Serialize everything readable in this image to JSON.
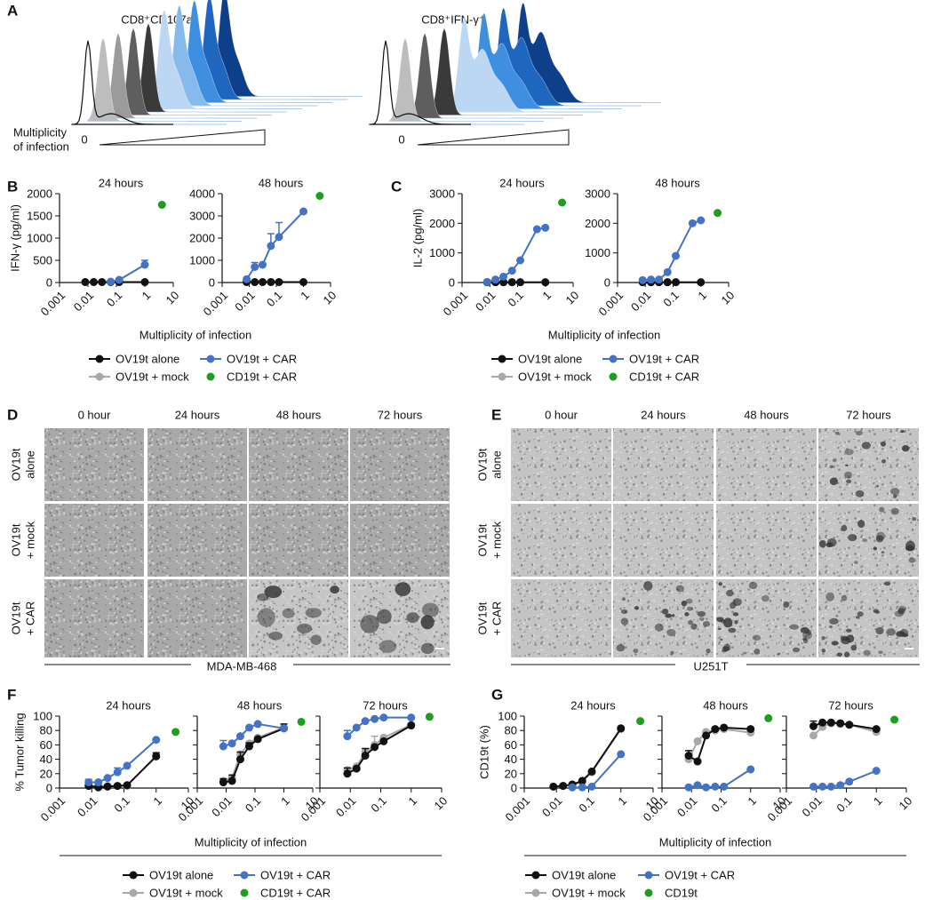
{
  "histograms": {
    "label": "A",
    "titles": [
      "CD8⁺CD107a⁺",
      "CD8⁺IFN-γ⁺"
    ],
    "moi_label": [
      "Multiplicity",
      "of infection"
    ],
    "zero": "0"
  },
  "micrographs": [
    {
      "label": "D",
      "columns": [
        "0 hour",
        "24 hours",
        "48 hours",
        "72 hours"
      ],
      "rows": [
        [
          "OV19t",
          "alone"
        ],
        [
          "OV19t",
          "+ mock"
        ],
        [
          "OV19t",
          "+ CAR"
        ]
      ],
      "cell_line": "MDA-MB-468"
    },
    {
      "label": "E",
      "columns": [
        "0 hour",
        "24 hours",
        "48 hours",
        "72 hours"
      ],
      "rows": [
        [
          "OV19t",
          "alone"
        ],
        [
          "OV19t",
          "+ mock"
        ],
        [
          "OV19t",
          "+ CAR"
        ]
      ],
      "cell_line": "U251T"
    }
  ],
  "chart_data": [
    {
      "type": "line",
      "label": "B",
      "ylabel": "IFN-γ (pg/ml)",
      "xlabel": "Multiplicity of infection",
      "xscale": "log",
      "xlim": [
        0.001,
        10
      ],
      "xticks": [
        0.001,
        0.01,
        0.1,
        1,
        10
      ],
      "series": [
        {
          "name": "OV19t alone",
          "color": "#111111"
        },
        {
          "name": "OV19t + mock",
          "color": "#a8a8a8"
        },
        {
          "name": "OV19t + CAR",
          "color": "#4472c4"
        },
        {
          "name": "CD19t + CAR",
          "color": "#1e9e1e",
          "line": false
        }
      ],
      "panels": [
        {
          "title": "24 hours",
          "ylim": [
            0,
            2000
          ],
          "yticks": [
            0,
            500,
            1000,
            1500,
            2000
          ],
          "data": [
            {
              "x": [
                0.008,
                0.016,
                0.031,
                0.063,
                0.125,
                1
              ],
              "values": [
                10,
                10,
                10,
                10,
                10,
                10
              ]
            },
            {
              "x": [
                0.008,
                0.016,
                0.031,
                0.063,
                0.125,
                1
              ],
              "values": [
                10,
                10,
                10,
                10,
                10,
                10
              ]
            },
            {
              "x": [
                0.063,
                0.125,
                1
              ],
              "values": [
                20,
                60,
                400
              ],
              "errors": [
                null,
                null,
                100
              ]
            },
            {
              "x": [
                4
              ],
              "values": [
                1750
              ]
            }
          ]
        },
        {
          "title": "48 hours",
          "ylim": [
            0,
            4000
          ],
          "yticks": [
            0,
            1000,
            2000,
            3000,
            4000
          ],
          "data": [
            {
              "x": [
                0.008,
                0.016,
                0.031,
                0.063,
                0.125,
                1
              ],
              "values": [
                20,
                20,
                20,
                20,
                20,
                20
              ]
            },
            {
              "x": [
                0.008,
                0.016,
                0.031,
                0.063,
                0.125,
                1
              ],
              "values": [
                20,
                20,
                20,
                20,
                20,
                20
              ]
            },
            {
              "x": [
                0.008,
                0.016,
                0.031,
                0.063,
                0.125,
                1
              ],
              "values": [
                150,
                700,
                800,
                1650,
                2050,
                3200
              ],
              "errors": [
                null,
                200,
                null,
                550,
                650,
                null
              ]
            },
            {
              "x": [
                4
              ],
              "values": [
                3900
              ]
            }
          ]
        }
      ]
    },
    {
      "type": "line",
      "label": "C",
      "ylabel": "IL-2 (pg/ml)",
      "xlabel": "Multiplicity of infection",
      "xscale": "log",
      "xlim": [
        0.001,
        10
      ],
      "xticks": [
        0.001,
        0.01,
        0.1,
        1,
        10
      ],
      "series": [
        {
          "name": "OV19t alone",
          "color": "#111111"
        },
        {
          "name": "OV19t + mock",
          "color": "#a8a8a8"
        },
        {
          "name": "OV19t + CAR",
          "color": "#4472c4"
        },
        {
          "name": "CD19t + CAR",
          "color": "#1e9e1e",
          "line": false
        }
      ],
      "panels": [
        {
          "title": "24 hours",
          "ylim": [
            0,
            3000
          ],
          "yticks": [
            0,
            1000,
            2000,
            3000
          ],
          "data": [
            {
              "x": [
                0.008,
                0.016,
                0.031,
                0.063,
                0.125,
                1
              ],
              "values": [
                10,
                10,
                10,
                10,
                10,
                10
              ]
            },
            {
              "x": [
                0.008,
                0.016,
                0.031,
                0.063,
                0.125,
                1
              ],
              "values": [
                10,
                10,
                10,
                10,
                10,
                10
              ]
            },
            {
              "x": [
                0.008,
                0.016,
                0.031,
                0.063,
                0.125,
                0.5,
                1
              ],
              "values": [
                20,
                100,
                200,
                400,
                750,
                1800,
                1850
              ]
            },
            {
              "x": [
                4
              ],
              "values": [
                2700
              ]
            }
          ]
        },
        {
          "title": "48 hours",
          "ylim": [
            0,
            3000
          ],
          "yticks": [
            0,
            1000,
            2000,
            3000
          ],
          "data": [
            {
              "x": [
                0.008,
                0.016,
                0.031,
                0.063,
                0.125,
                1
              ],
              "values": [
                10,
                10,
                10,
                10,
                10,
                10
              ]
            },
            {
              "x": [
                0.008,
                0.016,
                0.031,
                0.063,
                0.125,
                1
              ],
              "values": [
                10,
                10,
                10,
                10,
                10,
                10
              ]
            },
            {
              "x": [
                0.008,
                0.016,
                0.031,
                0.063,
                0.125,
                0.5,
                1
              ],
              "values": [
                80,
                100,
                100,
                350,
                900,
                2000,
                2100
              ]
            },
            {
              "x": [
                4
              ],
              "values": [
                2350
              ]
            }
          ]
        }
      ]
    },
    {
      "type": "line",
      "label": "F",
      "ylabel": "% Tumor killing",
      "xlabel": "Multiplicity of infection",
      "xscale": "log",
      "xlim": [
        0.001,
        10
      ],
      "xticks": [
        0.001,
        0.01,
        0.1,
        1,
        10
      ],
      "sharey": true,
      "ylim": [
        0,
        100
      ],
      "yticks": [
        0,
        20,
        40,
        60,
        80,
        100
      ],
      "series": [
        {
          "name": "OV19t alone",
          "color": "#111111"
        },
        {
          "name": "OV19t + mock",
          "color": "#a8a8a8"
        },
        {
          "name": "OV19t + CAR",
          "color": "#4472c4"
        },
        {
          "name": "CD19t + CAR",
          "color": "#1e9e1e",
          "line": false
        }
      ],
      "panels": [
        {
          "title": "24 hours",
          "data": [
            {
              "x": [
                0.008,
                0.016,
                0.031,
                0.063,
                0.125,
                1
              ],
              "values": [
                3,
                1,
                2,
                3,
                4,
                44
              ],
              "errors": [
                null,
                null,
                null,
                null,
                null,
                5
              ]
            },
            {
              "x": [
                0.008,
                0.016,
                0.031,
                0.063,
                0.125,
                1
              ],
              "values": [
                3,
                3,
                3,
                3,
                3,
                45
              ]
            },
            {
              "x": [
                0.008,
                0.016,
                0.031,
                0.063,
                0.125,
                1
              ],
              "values": [
                8,
                8,
                14,
                22,
                31,
                67
              ],
              "errors": [
                4,
                null,
                null,
                6,
                null,
                null
              ]
            },
            {
              "x": [
                4
              ],
              "values": [
                78
              ]
            }
          ]
        },
        {
          "title": "48 hours",
          "data": [
            {
              "x": [
                0.008,
                0.016,
                0.031,
                0.063,
                0.125,
                1
              ],
              "values": [
                8,
                10,
                40,
                58,
                68,
                83
              ],
              "errors": [
                5,
                8,
                10,
                5,
                null,
                6
              ]
            },
            {
              "x": [
                0.008,
                0.016,
                0.031,
                0.063,
                0.125,
                1
              ],
              "values": [
                10,
                14,
                47,
                62,
                70,
                84
              ]
            },
            {
              "x": [
                0.008,
                0.016,
                0.031,
                0.063,
                0.125,
                1
              ],
              "values": [
                58,
                62,
                72,
                84,
                89,
                83
              ],
              "errors": [
                8,
                null,
                null,
                null,
                null,
                null
              ]
            },
            {
              "x": [
                4
              ],
              "values": [
                92
              ]
            }
          ]
        },
        {
          "title": "72 hours",
          "data": [
            {
              "x": [
                0.008,
                0.016,
                0.031,
                0.063,
                0.125,
                1
              ],
              "values": [
                20,
                27,
                45,
                57,
                65,
                87
              ],
              "errors": [
                8,
                null,
                10,
                null,
                null,
                null
              ]
            },
            {
              "x": [
                0.008,
                0.016,
                0.031,
                0.063,
                0.125,
                1
              ],
              "values": [
                25,
                30,
                50,
                60,
                70,
                88
              ],
              "errors": [
                null,
                null,
                null,
                12,
                null,
                null
              ]
            },
            {
              "x": [
                0.008,
                0.016,
                0.031,
                0.063,
                0.125,
                1
              ],
              "values": [
                72,
                84,
                93,
                96,
                98,
                98
              ],
              "errors": [
                8,
                null,
                null,
                null,
                null,
                null
              ]
            },
            {
              "x": [
                4
              ],
              "values": [
                99
              ]
            }
          ]
        }
      ]
    },
    {
      "type": "line",
      "label": "G",
      "ylabel": "CD19t (%)",
      "xlabel": "Multiplicity of infection",
      "xscale": "log",
      "xlim": [
        0.001,
        10
      ],
      "xticks": [
        0.001,
        0.01,
        0.1,
        1,
        10
      ],
      "sharey": true,
      "ylim": [
        0,
        100
      ],
      "yticks": [
        0,
        20,
        40,
        60,
        80,
        100
      ],
      "series": [
        {
          "name": "OV19t alone",
          "color": "#111111"
        },
        {
          "name": "OV19t + mock",
          "color": "#a8a8a8"
        },
        {
          "name": "OV19t + CAR",
          "color": "#4472c4"
        },
        {
          "name": "CD19t",
          "color": "#1e9e1e",
          "line": false
        }
      ],
      "panels": [
        {
          "title": "24 hours",
          "data": [
            {
              "x": [
                0.008,
                0.016,
                0.031,
                0.063,
                0.125,
                1
              ],
              "values": [
                2,
                3,
                5,
                10,
                23,
                83
              ]
            },
            {
              "x": [
                0.008,
                0.016,
                0.031,
                0.063,
                0.125,
                1
              ],
              "values": [
                2,
                3,
                4,
                9,
                22,
                82
              ]
            },
            {
              "x": [
                0.031,
                0.063,
                0.125,
                1
              ],
              "values": [
                1,
                1,
                2,
                47
              ]
            },
            {
              "x": [
                4
              ],
              "values": [
                93
              ]
            }
          ]
        },
        {
          "title": "48 hours",
          "data": [
            {
              "x": [
                0.008,
                0.016,
                0.031,
                0.063,
                0.125,
                1
              ],
              "values": [
                45,
                37,
                73,
                82,
                84,
                82
              ],
              "errors": [
                7,
                null,
                null,
                null,
                null,
                null
              ]
            },
            {
              "x": [
                0.008,
                0.016,
                0.031,
                0.063,
                0.125,
                1
              ],
              "values": [
                40,
                65,
                78,
                80,
                82,
                77
              ]
            },
            {
              "x": [
                0.008,
                0.016,
                0.031,
                0.063,
                0.125,
                1
              ],
              "values": [
                1,
                4,
                1,
                2,
                2,
                26
              ]
            },
            {
              "x": [
                4
              ],
              "values": [
                97
              ]
            }
          ]
        },
        {
          "title": "72 hours",
          "data": [
            {
              "x": [
                0.008,
                0.016,
                0.031,
                0.063,
                0.125,
                1
              ],
              "values": [
                86,
                91,
                91,
                90,
                88,
                82
              ],
              "errors": [
                7,
                null,
                null,
                null,
                null,
                null
              ]
            },
            {
              "x": [
                0.008,
                0.016,
                0.031,
                0.063,
                0.125,
                1
              ],
              "values": [
                73,
                85,
                90,
                89,
                88,
                78
              ]
            },
            {
              "x": [
                0.008,
                0.016,
                0.031,
                0.063,
                0.125,
                1
              ],
              "values": [
                2,
                2,
                2,
                4,
                9,
                24
              ]
            },
            {
              "x": [
                4
              ],
              "values": [
                95
              ]
            }
          ]
        }
      ]
    }
  ]
}
